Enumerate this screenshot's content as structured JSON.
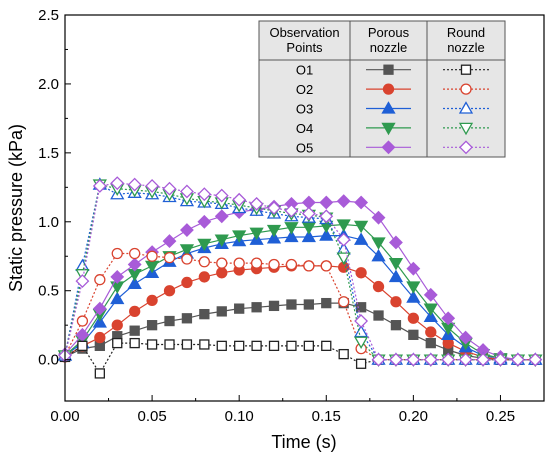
{
  "chart_data": {
    "type": "line",
    "xlabel": "Time (s)",
    "ylabel": "Static pressure (kPa)",
    "xlim": [
      0,
      0.275
    ],
    "ylim": [
      -0.3,
      2.5
    ],
    "xticks": [
      0.0,
      0.05,
      0.1,
      0.15,
      0.2,
      0.25
    ],
    "xtick_labels": [
      "0.00",
      "0.05",
      "0.10",
      "0.15",
      "0.20",
      "0.25"
    ],
    "yticks": [
      0.0,
      0.5,
      1.0,
      1.5,
      2.0,
      2.5
    ],
    "ytick_labels": [
      "0.0",
      "0.5",
      "1.0",
      "1.5",
      "2.0",
      "2.5"
    ],
    "grid": false,
    "legend": {
      "placement": "top-right",
      "headers": [
        "Observation Points",
        "Porous nozzle",
        "Round nozzle"
      ],
      "header_lines": [
        [
          "Observation",
          "Points"
        ],
        [
          "Porous",
          "nozzle"
        ],
        [
          "Round",
          "nozzle"
        ]
      ],
      "rows": [
        "O1",
        "O2",
        "O3",
        "O4",
        "O5"
      ]
    },
    "series": [
      {
        "point": "O1",
        "nozzle": "Porous",
        "color": "#555555",
        "marker": "square",
        "filled": true,
        "x": [
          0,
          0.01,
          0.02,
          0.03,
          0.04,
          0.05,
          0.06,
          0.07,
          0.08,
          0.09,
          0.1,
          0.11,
          0.12,
          0.13,
          0.14,
          0.15,
          0.16,
          0.17,
          0.18,
          0.19,
          0.2,
          0.21,
          0.22,
          0.23,
          0.24,
          0.25,
          0.26,
          0.27
        ],
        "y": [
          0.02,
          0.08,
          0.1,
          0.17,
          0.21,
          0.25,
          0.28,
          0.3,
          0.33,
          0.35,
          0.37,
          0.38,
          0.39,
          0.4,
          0.4,
          0.41,
          0.41,
          0.38,
          0.32,
          0.25,
          0.18,
          0.12,
          0.07,
          0.03,
          0.01,
          0,
          0,
          0
        ]
      },
      {
        "point": "O2",
        "nozzle": "Porous",
        "color": "#d9432f",
        "marker": "circle",
        "filled": true,
        "x": [
          0,
          0.01,
          0.02,
          0.03,
          0.04,
          0.05,
          0.06,
          0.07,
          0.08,
          0.09,
          0.1,
          0.11,
          0.12,
          0.13,
          0.14,
          0.15,
          0.16,
          0.17,
          0.18,
          0.19,
          0.2,
          0.21,
          0.22,
          0.23,
          0.24,
          0.25,
          0.26,
          0.27
        ],
        "y": [
          0.02,
          0.1,
          0.16,
          0.25,
          0.35,
          0.43,
          0.5,
          0.56,
          0.6,
          0.63,
          0.65,
          0.66,
          0.67,
          0.68,
          0.68,
          0.68,
          0.67,
          0.63,
          0.53,
          0.42,
          0.3,
          0.2,
          0.12,
          0.06,
          0.02,
          0,
          0,
          0
        ]
      },
      {
        "point": "O3",
        "nozzle": "Porous",
        "color": "#1f5fd6",
        "marker": "triangle-up",
        "filled": true,
        "x": [
          0,
          0.01,
          0.02,
          0.03,
          0.04,
          0.05,
          0.06,
          0.07,
          0.08,
          0.09,
          0.1,
          0.11,
          0.12,
          0.13,
          0.14,
          0.15,
          0.16,
          0.17,
          0.18,
          0.19,
          0.2,
          0.21,
          0.22,
          0.23,
          0.24,
          0.25,
          0.26,
          0.27
        ],
        "y": [
          0.03,
          0.12,
          0.27,
          0.44,
          0.55,
          0.63,
          0.71,
          0.77,
          0.81,
          0.84,
          0.86,
          0.87,
          0.88,
          0.89,
          0.89,
          0.9,
          0.9,
          0.87,
          0.75,
          0.6,
          0.45,
          0.31,
          0.18,
          0.09,
          0.03,
          0.01,
          0,
          0
        ]
      },
      {
        "point": "O4",
        "nozzle": "Porous",
        "color": "#2f9a4f",
        "marker": "triangle-down",
        "filled": true,
        "x": [
          0,
          0.01,
          0.02,
          0.03,
          0.04,
          0.05,
          0.06,
          0.07,
          0.08,
          0.09,
          0.1,
          0.11,
          0.12,
          0.13,
          0.14,
          0.15,
          0.16,
          0.17,
          0.18,
          0.19,
          0.2,
          0.21,
          0.22,
          0.23,
          0.24,
          0.25,
          0.26,
          0.27
        ],
        "y": [
          0.03,
          0.14,
          0.33,
          0.53,
          0.62,
          0.68,
          0.75,
          0.8,
          0.84,
          0.87,
          0.9,
          0.92,
          0.94,
          0.96,
          0.96,
          0.97,
          0.98,
          0.97,
          0.85,
          0.7,
          0.53,
          0.37,
          0.23,
          0.12,
          0.04,
          0.01,
          0,
          0
        ]
      },
      {
        "point": "O5",
        "nozzle": "Porous",
        "color": "#a85bd8",
        "marker": "diamond",
        "filled": true,
        "x": [
          0,
          0.01,
          0.02,
          0.03,
          0.04,
          0.05,
          0.06,
          0.07,
          0.08,
          0.09,
          0.1,
          0.11,
          0.12,
          0.13,
          0.14,
          0.15,
          0.16,
          0.17,
          0.18,
          0.19,
          0.2,
          0.21,
          0.22,
          0.23,
          0.24,
          0.25,
          0.26,
          0.27
        ],
        "y": [
          0.04,
          0.18,
          0.37,
          0.6,
          0.69,
          0.78,
          0.86,
          0.94,
          1.0,
          1.04,
          1.07,
          1.09,
          1.11,
          1.13,
          1.14,
          1.14,
          1.15,
          1.14,
          1.03,
          0.85,
          0.66,
          0.47,
          0.3,
          0.16,
          0.07,
          0.02,
          0,
          0
        ]
      },
      {
        "point": "O1",
        "nozzle": "Round",
        "color": "#222222",
        "marker": "square",
        "filled": false,
        "x": [
          0,
          0.01,
          0.02,
          0.03,
          0.04,
          0.05,
          0.06,
          0.07,
          0.08,
          0.09,
          0.1,
          0.11,
          0.12,
          0.13,
          0.14,
          0.15,
          0.16,
          0.17,
          0.18,
          0.19,
          0.2,
          0.21,
          0.22,
          0.23,
          0.24,
          0.25,
          0.26,
          0.27
        ],
        "y": [
          0.02,
          0.1,
          -0.1,
          0.12,
          0.12,
          0.11,
          0.11,
          0.11,
          0.11,
          0.1,
          0.1,
          0.1,
          0.1,
          0.1,
          0.1,
          0.1,
          0.04,
          -0.03,
          0,
          0,
          0,
          0,
          0,
          0,
          0,
          0,
          0,
          0
        ]
      },
      {
        "point": "O2",
        "nozzle": "Round",
        "color": "#d9432f",
        "marker": "circle",
        "filled": false,
        "x": [
          0,
          0.01,
          0.02,
          0.03,
          0.04,
          0.05,
          0.06,
          0.07,
          0.08,
          0.09,
          0.1,
          0.11,
          0.12,
          0.13,
          0.14,
          0.15,
          0.16,
          0.17,
          0.18,
          0.19,
          0.2,
          0.21,
          0.22,
          0.23,
          0.24,
          0.25,
          0.26,
          0.27
        ],
        "y": [
          0.03,
          0.28,
          0.58,
          0.77,
          0.77,
          0.75,
          0.74,
          0.73,
          0.71,
          0.7,
          0.7,
          0.7,
          0.69,
          0.69,
          0.68,
          0.68,
          0.42,
          0.08,
          0,
          0,
          0,
          0,
          0,
          0,
          0,
          0,
          0,
          0
        ]
      },
      {
        "point": "O3",
        "nozzle": "Round",
        "color": "#1f5fd6",
        "marker": "triangle-up",
        "filled": false,
        "x": [
          0,
          0.01,
          0.02,
          0.03,
          0.04,
          0.05,
          0.06,
          0.07,
          0.08,
          0.09,
          0.1,
          0.11,
          0.12,
          0.13,
          0.14,
          0.15,
          0.16,
          0.17,
          0.18,
          0.19,
          0.2,
          0.21,
          0.22,
          0.23,
          0.24,
          0.25,
          0.26,
          0.27
        ],
        "y": [
          0.03,
          0.68,
          1.27,
          1.2,
          1.21,
          1.2,
          1.18,
          1.15,
          1.14,
          1.13,
          1.1,
          1.08,
          1.06,
          1.04,
          1.03,
          1.02,
          0.8,
          0.2,
          0,
          0,
          0,
          0,
          0,
          0,
          0,
          0,
          0,
          0
        ]
      },
      {
        "point": "O4",
        "nozzle": "Round",
        "color": "#2f9a4f",
        "marker": "triangle-down",
        "filled": false,
        "x": [
          0,
          0.01,
          0.02,
          0.03,
          0.04,
          0.05,
          0.06,
          0.07,
          0.08,
          0.09,
          0.1,
          0.11,
          0.12,
          0.13,
          0.14,
          0.15,
          0.16,
          0.17,
          0.18,
          0.19,
          0.2,
          0.21,
          0.22,
          0.23,
          0.24,
          0.25,
          0.26,
          0.27
        ],
        "y": [
          0.03,
          0.62,
          1.27,
          1.24,
          1.23,
          1.22,
          1.2,
          1.17,
          1.15,
          1.14,
          1.12,
          1.1,
          1.08,
          1.06,
          1.05,
          1.03,
          0.74,
          0.13,
          0,
          0,
          0,
          0,
          0,
          0,
          0,
          0,
          0,
          0
        ]
      },
      {
        "point": "O5",
        "nozzle": "Round",
        "color": "#a85bd8",
        "marker": "diamond",
        "filled": false,
        "x": [
          0,
          0.01,
          0.02,
          0.03,
          0.04,
          0.05,
          0.06,
          0.07,
          0.08,
          0.09,
          0.1,
          0.11,
          0.12,
          0.13,
          0.14,
          0.15,
          0.16,
          0.17,
          0.18,
          0.19,
          0.2,
          0.21,
          0.22,
          0.23,
          0.24,
          0.25,
          0.26,
          0.27
        ],
        "y": [
          0.03,
          0.57,
          1.26,
          1.28,
          1.27,
          1.26,
          1.24,
          1.22,
          1.2,
          1.19,
          1.16,
          1.13,
          1.1,
          1.08,
          1.06,
          1.04,
          0.87,
          0.28,
          0,
          0,
          0,
          0,
          0,
          0,
          0,
          0,
          0,
          0
        ]
      }
    ]
  }
}
